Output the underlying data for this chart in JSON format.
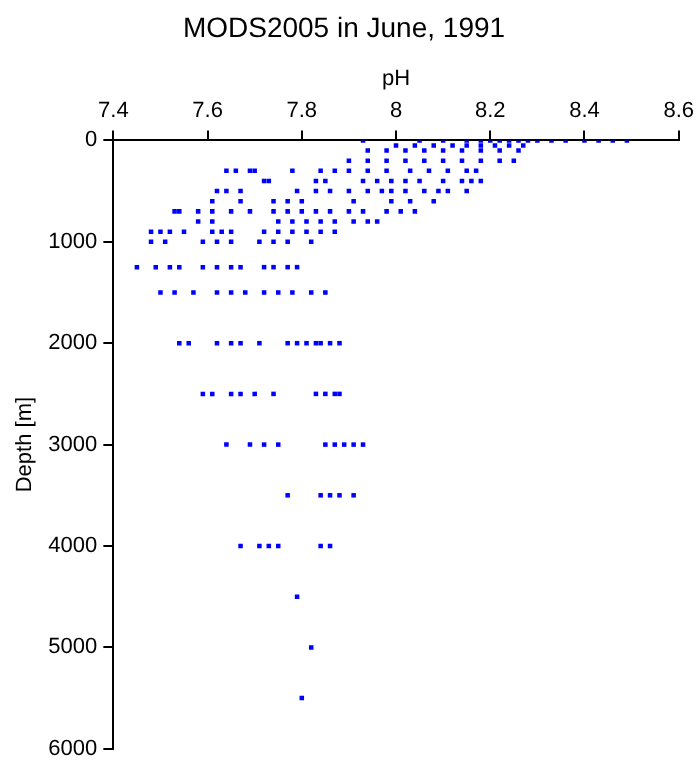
{
  "chart_data": {
    "type": "scatter",
    "title": "MODS2005 in June, 1991",
    "xlabel": "pH",
    "ylabel": "Depth [m]",
    "xlim": [
      7.4,
      8.6
    ],
    "xticks": [
      7.4,
      7.6,
      7.8,
      8,
      8.2,
      8.4,
      8.6
    ],
    "ylim": [
      6000,
      0
    ],
    "yticks": [
      0,
      1000,
      2000,
      3000,
      4000,
      5000,
      6000
    ],
    "grid": false,
    "legend": false,
    "marker": "square",
    "series": [
      {
        "color": "#0000ff",
        "x": [
          7.93,
          8.05,
          8.1,
          8.15,
          8.18,
          8.2,
          8.22,
          8.24,
          8.26,
          8.28,
          8.3,
          8.33,
          8.36,
          8.4,
          8.43,
          8.46,
          8.49,
          8.0,
          8.04,
          8.08,
          8.12,
          8.15,
          8.18,
          8.21,
          8.24,
          8.27,
          7.94,
          7.98,
          8.02,
          8.06,
          8.1,
          8.14,
          8.18,
          8.22,
          8.26,
          7.9,
          7.94,
          7.98,
          8.02,
          8.06,
          8.1,
          8.14,
          8.18,
          8.22,
          8.25,
          7.64,
          7.66,
          7.69,
          7.7,
          7.78,
          7.84,
          7.87,
          7.9,
          7.94,
          7.98,
          8.03,
          8.07,
          8.11,
          8.15,
          8.17,
          7.72,
          7.73,
          7.83,
          7.85,
          7.93,
          7.96,
          7.99,
          8.02,
          8.05,
          8.1,
          8.14,
          8.16,
          8.18,
          7.62,
          7.64,
          7.67,
          7.79,
          7.83,
          7.86,
          7.9,
          7.94,
          7.97,
          7.99,
          8.02,
          8.06,
          8.09,
          8.11,
          8.15,
          7.61,
          7.67,
          7.74,
          7.77,
          7.8,
          7.91,
          7.99,
          8.03,
          8.08,
          7.53,
          7.54,
          7.58,
          7.61,
          7.65,
          7.69,
          7.74,
          7.77,
          7.8,
          7.83,
          7.86,
          7.9,
          7.93,
          7.98,
          8.01,
          8.04,
          7.58,
          7.61,
          7.75,
          7.78,
          7.81,
          7.84,
          7.87,
          7.91,
          7.94,
          7.96,
          7.48,
          7.5,
          7.52,
          7.55,
          7.61,
          7.63,
          7.65,
          7.72,
          7.75,
          7.78,
          7.81,
          7.84,
          7.87,
          7.48,
          7.51,
          7.59,
          7.62,
          7.65,
          7.71,
          7.74,
          7.77,
          7.82,
          7.45,
          7.49,
          7.52,
          7.54,
          7.59,
          7.62,
          7.65,
          7.67,
          7.72,
          7.74,
          7.77,
          7.79,
          7.5,
          7.53,
          7.57,
          7.62,
          7.65,
          7.68,
          7.72,
          7.75,
          7.78,
          7.82,
          7.85,
          7.54,
          7.56,
          7.62,
          7.65,
          7.67,
          7.71,
          7.77,
          7.79,
          7.81,
          7.83,
          7.84,
          7.86,
          7.88,
          7.59,
          7.61,
          7.65,
          7.67,
          7.7,
          7.74,
          7.83,
          7.85,
          7.87,
          7.88,
          7.64,
          7.69,
          7.72,
          7.75,
          7.85,
          7.87,
          7.89,
          7.91,
          7.93,
          7.77,
          7.84,
          7.86,
          7.88,
          7.91,
          7.67,
          7.71,
          7.73,
          7.75,
          7.84,
          7.86,
          7.79,
          7.82,
          7.8
        ],
        "values": [
          0,
          0,
          0,
          0,
          0,
          0,
          0,
          0,
          0,
          0,
          0,
          0,
          0,
          0,
          0,
          0,
          0,
          50,
          50,
          50,
          50,
          50,
          50,
          50,
          50,
          50,
          100,
          100,
          100,
          100,
          100,
          100,
          100,
          100,
          100,
          200,
          200,
          200,
          200,
          200,
          200,
          200,
          200,
          200,
          200,
          300,
          300,
          300,
          300,
          300,
          300,
          300,
          300,
          300,
          300,
          300,
          300,
          300,
          300,
          300,
          400,
          400,
          400,
          400,
          400,
          400,
          400,
          400,
          400,
          400,
          400,
          400,
          400,
          500,
          500,
          500,
          500,
          500,
          500,
          500,
          500,
          500,
          500,
          500,
          500,
          500,
          500,
          500,
          600,
          600,
          600,
          600,
          600,
          600,
          600,
          600,
          600,
          700,
          700,
          700,
          700,
          700,
          700,
          700,
          700,
          700,
          700,
          700,
          700,
          700,
          700,
          700,
          700,
          800,
          800,
          800,
          800,
          800,
          800,
          800,
          800,
          800,
          800,
          900,
          900,
          900,
          900,
          900,
          900,
          900,
          900,
          900,
          900,
          900,
          900,
          900,
          1000,
          1000,
          1000,
          1000,
          1000,
          1000,
          1000,
          1000,
          1000,
          1250,
          1250,
          1250,
          1250,
          1250,
          1250,
          1250,
          1250,
          1250,
          1250,
          1250,
          1250,
          1500,
          1500,
          1500,
          1500,
          1500,
          1500,
          1500,
          1500,
          1500,
          1500,
          1500,
          2000,
          2000,
          2000,
          2000,
          2000,
          2000,
          2000,
          2000,
          2000,
          2000,
          2000,
          2000,
          2000,
          2500,
          2500,
          2500,
          2500,
          2500,
          2500,
          2500,
          2500,
          2500,
          2500,
          3000,
          3000,
          3000,
          3000,
          3000,
          3000,
          3000,
          3000,
          3000,
          3500,
          3500,
          3500,
          3500,
          3500,
          4000,
          4000,
          4000,
          4000,
          4000,
          4000,
          4500,
          5000,
          5500
        ]
      }
    ]
  }
}
